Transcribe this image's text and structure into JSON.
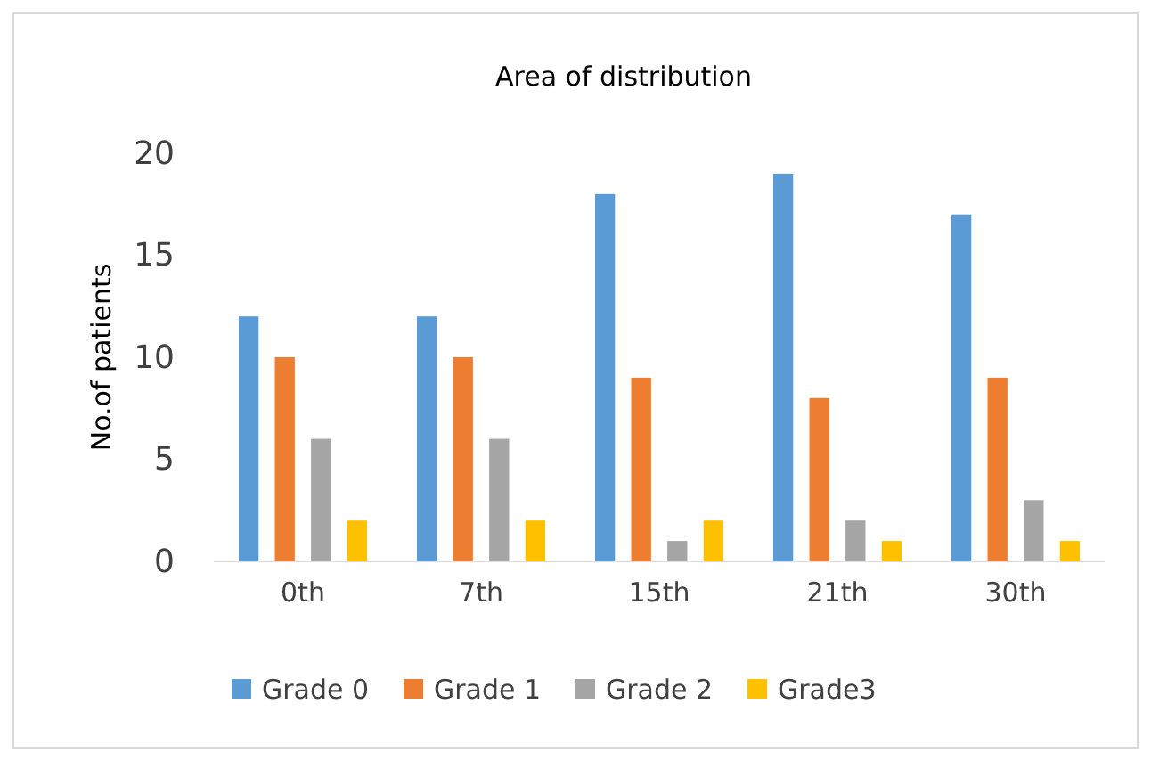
{
  "chart_data": {
    "type": "bar",
    "title": "Area of distribution",
    "ylabel": "No.of patients",
    "categories": [
      "0th",
      "7th",
      "15th",
      "21th",
      "30th"
    ],
    "series": [
      {
        "name": "Grade 0",
        "color": "#5b9bd5",
        "values": [
          12,
          12,
          18,
          19,
          17
        ]
      },
      {
        "name": "Grade 1",
        "color": "#ed7d31",
        "values": [
          10,
          10,
          9,
          8,
          9
        ]
      },
      {
        "name": "Grade 2",
        "color": "#a5a5a5",
        "values": [
          6,
          6,
          1,
          2,
          3
        ]
      },
      {
        "name": "Grade3",
        "color": "#ffc000",
        "values": [
          2,
          2,
          2,
          1,
          1
        ]
      }
    ],
    "ylim": [
      0,
      20
    ],
    "yticks": [
      0,
      5,
      10,
      15,
      20
    ],
    "grid": false,
    "legend": "bottom"
  }
}
